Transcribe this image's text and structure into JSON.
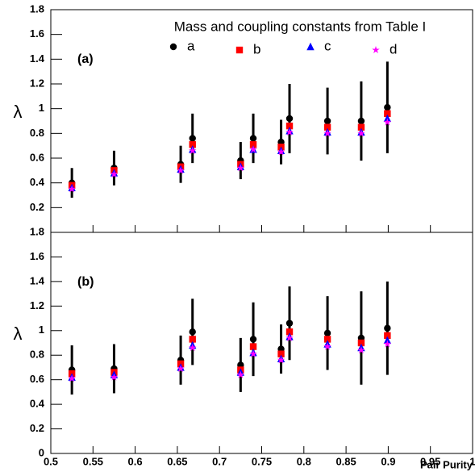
{
  "chart_data": [
    {
      "type": "scatter",
      "panel_label": "(a)",
      "ylabel": "λ",
      "legend_title": "Mass and coupling constants from Table I",
      "xlim": [
        0.5,
        1
      ],
      "xticks": [
        0.5,
        0.55,
        0.6,
        0.65,
        0.7,
        0.75,
        0.8,
        0.85,
        0.9,
        0.95,
        1
      ],
      "x_tick_labels": false,
      "ylim": [
        0,
        1.8
      ],
      "yticks": [
        0.2,
        0.4,
        0.6,
        0.8,
        1,
        1.2,
        1.4,
        1.6,
        1.8
      ],
      "x": [
        0.525,
        0.575,
        0.654,
        0.668,
        0.725,
        0.74,
        0.773,
        0.783,
        0.828,
        0.868,
        0.899
      ],
      "series": [
        {
          "name": "a",
          "color": "#000000",
          "marker": "circle",
          "values": [
            0.4,
            0.52,
            0.55,
            0.76,
            0.58,
            0.76,
            0.73,
            0.92,
            0.9,
            0.9,
            1.01
          ],
          "errors": [
            0.12,
            0.14,
            0.15,
            0.2,
            0.15,
            0.2,
            0.18,
            0.28,
            0.27,
            0.32,
            0.37
          ]
        },
        {
          "name": "b",
          "color": "#ff0000",
          "marker": "square",
          "values": [
            0.38,
            0.5,
            0.53,
            0.71,
            0.55,
            0.71,
            0.69,
            0.86,
            0.85,
            0.85,
            0.96
          ]
        },
        {
          "name": "c",
          "color": "#0000ff",
          "marker": "triangle",
          "values": [
            0.36,
            0.48,
            0.51,
            0.67,
            0.53,
            0.67,
            0.66,
            0.82,
            0.81,
            0.81,
            0.92
          ]
        },
        {
          "name": "d",
          "color": "#ff00ff",
          "marker": "star",
          "values": [
            0.35,
            0.47,
            0.5,
            0.66,
            0.52,
            0.67,
            0.65,
            0.81,
            0.8,
            0.8,
            0.89
          ]
        }
      ]
    },
    {
      "type": "scatter",
      "panel_label": "(b)",
      "ylabel": "λ",
      "xlabel": "Pair Purity",
      "xlim": [
        0.5,
        1
      ],
      "xticks": [
        0.5,
        0.55,
        0.6,
        0.65,
        0.7,
        0.75,
        0.8,
        0.85,
        0.9,
        0.95,
        1
      ],
      "x_tick_labels": true,
      "ylim": [
        0,
        1.8
      ],
      "yticks": [
        0,
        0.2,
        0.4,
        0.6,
        0.8,
        1,
        1.2,
        1.4,
        1.6,
        1.8
      ],
      "x": [
        0.525,
        0.575,
        0.654,
        0.668,
        0.725,
        0.74,
        0.773,
        0.783,
        0.828,
        0.868,
        0.899
      ],
      "series": [
        {
          "color": "#000000",
          "marker": "circle",
          "values": [
            0.68,
            0.69,
            0.76,
            0.99,
            0.72,
            0.93,
            0.85,
            1.06,
            0.98,
            0.94,
            1.02
          ],
          "errors": [
            0.2,
            0.2,
            0.2,
            0.27,
            0.22,
            0.3,
            0.2,
            0.3,
            0.3,
            0.38,
            0.38
          ]
        },
        {
          "color": "#ff0000",
          "marker": "square",
          "values": [
            0.65,
            0.66,
            0.73,
            0.93,
            0.68,
            0.87,
            0.81,
            0.99,
            0.93,
            0.9,
            0.96
          ]
        },
        {
          "color": "#0000ff",
          "marker": "triangle",
          "values": [
            0.62,
            0.64,
            0.7,
            0.88,
            0.66,
            0.82,
            0.77,
            0.95,
            0.89,
            0.86,
            0.92
          ]
        },
        {
          "color": "#ff00ff",
          "marker": "star",
          "values": [
            0.61,
            0.62,
            0.69,
            0.86,
            0.64,
            0.81,
            0.76,
            0.94,
            0.87,
            0.84,
            0.89
          ]
        }
      ]
    }
  ]
}
